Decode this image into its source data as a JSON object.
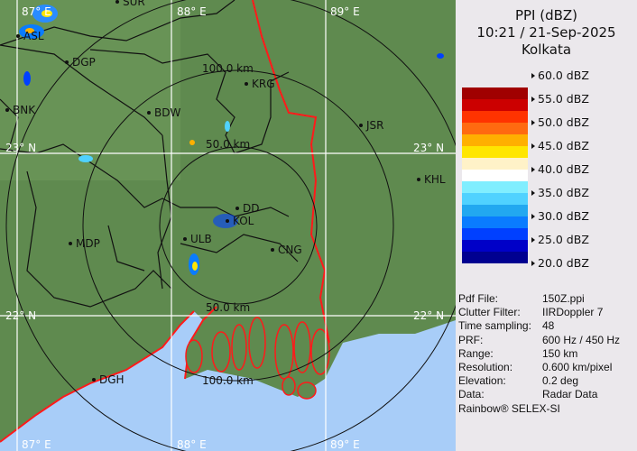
{
  "product": {
    "title": "PPI (dBZ)",
    "datetime": "10:21 / 21-Sep-2025",
    "station": "Kolkata"
  },
  "legend": {
    "labels": [
      "60.0 dBZ",
      "55.0 dBZ",
      "50.0 dBZ",
      "45.0 dBZ",
      "40.0 dBZ",
      "35.0 dBZ",
      "30.0 dBZ",
      "25.0 dBZ",
      "20.0 dBZ"
    ],
    "colors": [
      "#a00000",
      "#cc0000",
      "#ff3300",
      "#ff6a10",
      "#ffb000",
      "#ffe600",
      "#fff2c8",
      "#ffffff",
      "#80eeff",
      "#50d2ff",
      "#22a8f0",
      "#0a7cff",
      "#0040ff",
      "#0000c8",
      "#000090"
    ]
  },
  "info": [
    {
      "key": "Pdf File:",
      "value": "150Z.ppi"
    },
    {
      "key": "Clutter Filter:",
      "value": "IIRDoppler 7"
    },
    {
      "key": "Time sampling:",
      "value": "48"
    },
    {
      "key": "PRF:",
      "value": "600 Hz / 450 Hz"
    },
    {
      "key": "Range:",
      "value": "150 km"
    },
    {
      "key": "Resolution:",
      "value": "0.600 km/pixel"
    },
    {
      "key": "Elevation:",
      "value": "0.2 deg"
    },
    {
      "key": "Data:",
      "value": "Radar Data"
    }
  ],
  "credit": "Rainbow® SELEX-SI",
  "map": {
    "range_rings": [
      "50.0 km",
      "100.0 km",
      "150.0 km"
    ],
    "ring_labels": [
      "50.0 km",
      "100.0 km",
      "50.0 km",
      "100.0 km"
    ],
    "lon_labels": [
      "87° E",
      "88° E",
      "89° E"
    ],
    "lat_labels": [
      "23° N",
      "22° N"
    ],
    "cities": [
      "SUR",
      "ASL",
      "DGP",
      "BNK",
      "BDW",
      "KRG",
      "JSR",
      "KHL",
      "MDP",
      "DD",
      "KOL",
      "ULB",
      "CNG",
      "DGH"
    ],
    "colors": {
      "land": "#5f8a4f",
      "sea": "#a8cdf8",
      "coast": "#ff1a1a",
      "districts": "#111111",
      "grid": "#ffffff"
    }
  }
}
